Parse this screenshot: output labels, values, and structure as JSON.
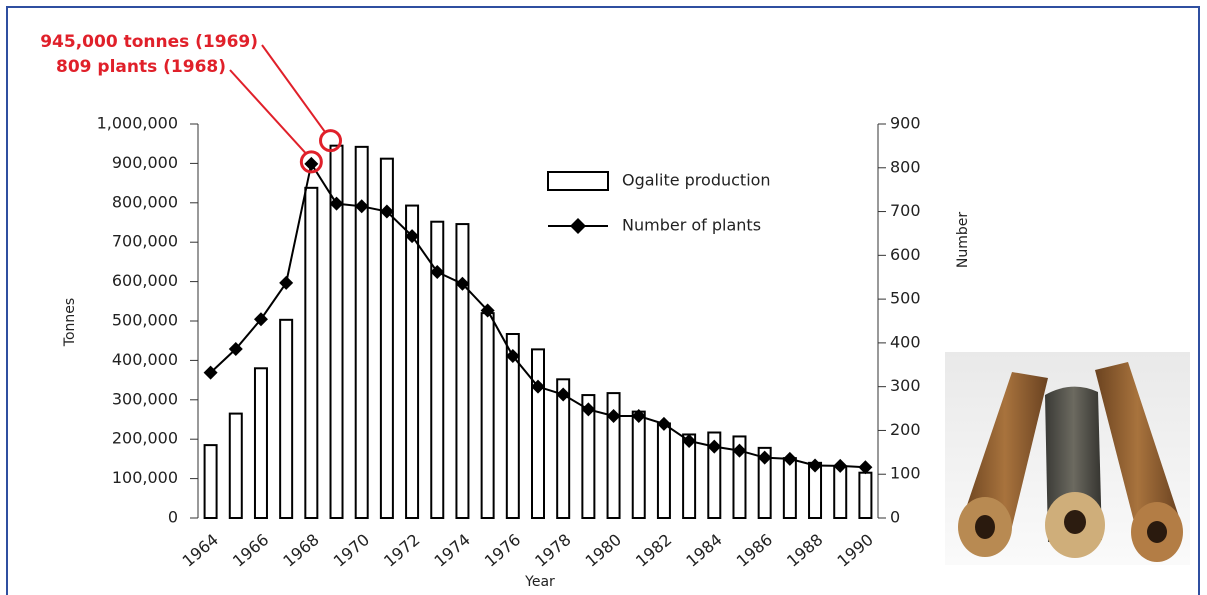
{
  "chart_data": {
    "type": "bar",
    "annotations": [
      "945,000 tonnes (1969)",
      "809 plants (1968)"
    ],
    "x_label": "Year",
    "y_label": "Tonnes",
    "y2_label": "Number",
    "categories": [
      "1964",
      null,
      "1966",
      null,
      "1968",
      null,
      "1970",
      null,
      "1972",
      null,
      "1974",
      null,
      "1976",
      null,
      "1978",
      null,
      "1980",
      null,
      "1982",
      null,
      "1984",
      null,
      "1986",
      null,
      "1988",
      null,
      "1990"
    ],
    "series": [
      {
        "name": "Ogalite production",
        "type": "bar",
        "color": "#ffffff",
        "values": [
          185000,
          265000,
          380000,
          503000,
          838000,
          945000,
          942000,
          912000,
          793000,
          752000,
          746000,
          520000,
          467000,
          428000,
          352000,
          312000,
          317000,
          270000,
          240000,
          212000,
          217000,
          207000,
          178000,
          152000,
          140000,
          130000,
          115000
        ]
      },
      {
        "name": "Number of plants",
        "type": "line",
        "axis": "y2",
        "color": "#000000",
        "values": [
          332,
          386,
          454,
          537,
          809,
          718,
          712,
          700,
          644,
          562,
          535,
          474,
          370,
          300,
          282,
          248,
          233,
          233,
          215,
          176,
          163,
          154,
          138,
          135,
          120,
          119,
          116
        ]
      }
    ],
    "ylim": [
      0,
      1000000
    ],
    "yticks": [
      0,
      {
        "value": 100000,
        "label": "100,000"
      },
      {
        "value": 200000,
        "label": "200,000"
      },
      {
        "value": 300000,
        "label": "300,000"
      },
      {
        "value": 400000,
        "label": "400,000"
      },
      {
        "value": 500000,
        "label": "500,000"
      },
      {
        "value": 600000,
        "label": "600,000"
      },
      {
        "value": 700000,
        "label": "700,000"
      },
      {
        "value": 800000,
        "label": "800,000"
      },
      {
        "value": 900000,
        "label": "900,000"
      },
      {
        "value": 1000000,
        "label": "1,000,000"
      }
    ],
    "y2lim": [
      0,
      900
    ],
    "y2ticks": [
      0,
      100,
      200,
      300,
      400,
      500,
      600,
      700,
      800,
      900
    ],
    "legend": "upper right",
    "grid": false
  }
}
